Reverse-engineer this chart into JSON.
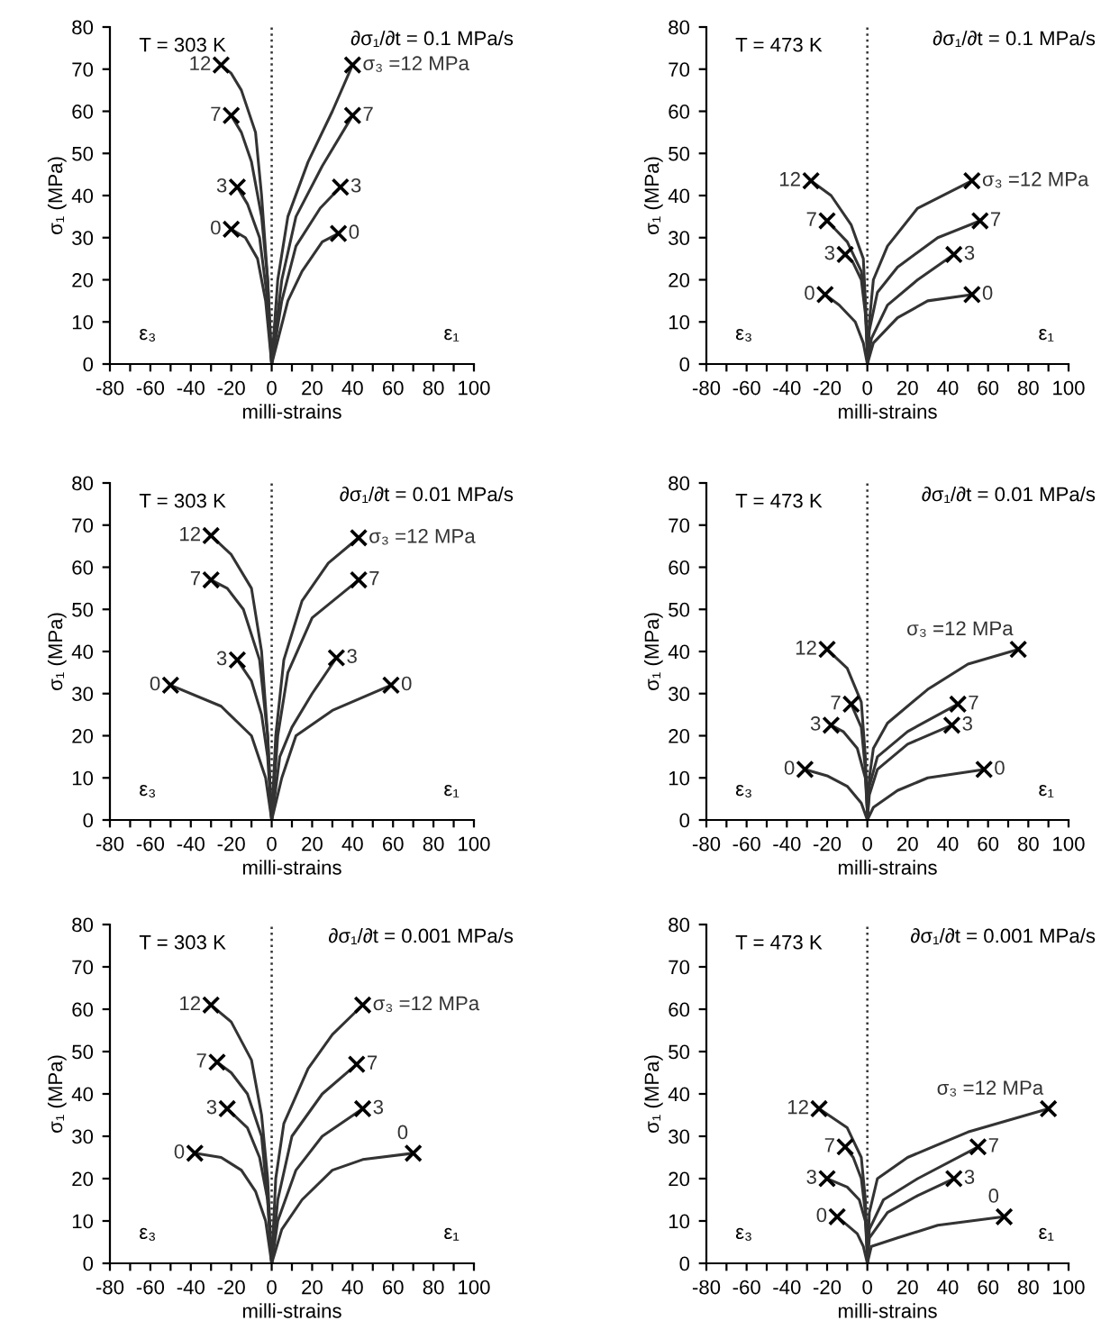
{
  "chart_data": [
    {
      "type": "line",
      "xlabel": "milli-strains",
      "ylabel": "σ₁ (MPa)",
      "xlim": [
        -80,
        100
      ],
      "ylim": [
        0,
        80
      ],
      "line_style": "solid",
      "grid": false,
      "xticks": [
        -80,
        {
          "value": -70,
          "label": null
        },
        -60,
        {
          "value": -50,
          "label": null
        },
        -40,
        {
          "value": -30,
          "label": null
        },
        -20,
        {
          "value": -10,
          "label": null
        },
        0,
        {
          "value": 10,
          "label": null
        },
        20,
        {
          "value": 30,
          "label": null
        },
        40,
        {
          "value": 50,
          "label": null
        },
        60,
        {
          "value": 70,
          "label": null
        },
        80,
        {
          "value": 90,
          "label": null
        },
        100
      ],
      "yticks": [
        0,
        10,
        20,
        30,
        40,
        50,
        60,
        70,
        80
      ],
      "ref_lines": [
        {
          "axis": "x",
          "value": 0,
          "line_style": "dotted",
          "color": "#333333"
        }
      ],
      "annotations": [
        "T = 303 K",
        "∂σ₁/∂t = 0.1 MPa/s",
        "ε₃",
        "ε₁"
      ],
      "series": [
        {
          "name": "12",
          "color": "#333333",
          "x": [
            0,
            -2,
            -5,
            -8,
            -15,
            -20,
            -25
          ],
          "values": [
            0,
            20,
            40,
            55,
            65,
            69,
            71
          ]
        },
        {
          "name": "7",
          "color": "#333333",
          "x": [
            0,
            -2,
            -5,
            -10,
            -15,
            -20
          ],
          "values": [
            0,
            20,
            35,
            48,
            55,
            59
          ]
        },
        {
          "name": "3",
          "color": "#333333",
          "x": [
            0,
            -2,
            -6,
            -12,
            -17
          ],
          "values": [
            0,
            15,
            30,
            38,
            42
          ]
        },
        {
          "name": "0",
          "color": "#333333",
          "x": [
            0,
            -3,
            -7,
            -13,
            -20
          ],
          "values": [
            0,
            15,
            25,
            30,
            32
          ]
        },
        {
          "name": "σ₃ =12 MPa",
          "color": "#333333",
          "x": [
            0,
            3,
            8,
            18,
            30,
            40
          ],
          "values": [
            0,
            20,
            35,
            48,
            60,
            71
          ]
        },
        {
          "name": "7",
          "color": "#333333",
          "x": [
            0,
            5,
            12,
            25,
            40
          ],
          "values": [
            0,
            20,
            35,
            47,
            59
          ]
        },
        {
          "name": "3",
          "color": "#333333",
          "x": [
            0,
            5,
            12,
            24,
            34
          ],
          "values": [
            0,
            15,
            28,
            37,
            42
          ]
        },
        {
          "name": "0",
          "color": "#333333",
          "x": [
            0,
            8,
            15,
            25,
            33
          ],
          "values": [
            0,
            15,
            22,
            29,
            31
          ]
        },
        {
          "type": "scatter",
          "marker": "cross",
          "color": "#000000",
          "x": [
            -25,
            -20,
            -17,
            -20,
            40,
            40,
            34,
            33
          ],
          "values": [
            71,
            59,
            42,
            32,
            71,
            59,
            42,
            31
          ]
        }
      ]
    },
    {
      "type": "line",
      "xlabel": "milli-strains",
      "ylabel": "σ₁ (MPa)",
      "xlim": [
        -80,
        100
      ],
      "ylim": [
        0,
        80
      ],
      "line_style": "solid",
      "grid": false,
      "xticks": [
        -80,
        {
          "value": -70,
          "label": null
        },
        -60,
        {
          "value": -50,
          "label": null
        },
        -40,
        {
          "value": -30,
          "label": null
        },
        -20,
        {
          "value": -10,
          "label": null
        },
        0,
        {
          "value": 10,
          "label": null
        },
        20,
        {
          "value": 30,
          "label": null
        },
        40,
        {
          "value": 50,
          "label": null
        },
        60,
        {
          "value": 70,
          "label": null
        },
        80,
        {
          "value": 90,
          "label": null
        },
        100
      ],
      "yticks": [
        0,
        10,
        20,
        30,
        40,
        50,
        60,
        70,
        80
      ],
      "ref_lines": [
        {
          "axis": "x",
          "value": 0,
          "line_style": "dotted",
          "color": "#333333"
        }
      ],
      "annotations": [
        "T = 473 K",
        "∂σ₁/∂t = 0.1 MPa/s",
        "ε₃",
        "ε₁"
      ],
      "series": [
        {
          "name": "12",
          "color": "#333333",
          "x": [
            0,
            -1,
            -2,
            -8,
            -18,
            -28
          ],
          "values": [
            3,
            15,
            25,
            33,
            40,
            43.5
          ]
        },
        {
          "name": "7",
          "color": "#333333",
          "x": [
            0,
            -1,
            -3,
            -10,
            -20
          ],
          "values": [
            3,
            15,
            22,
            29,
            34
          ]
        },
        {
          "name": "3",
          "color": "#333333",
          "x": [
            0,
            -1,
            -3,
            -7,
            -11
          ],
          "values": [
            3,
            12,
            20,
            24,
            26
          ]
        },
        {
          "name": "0",
          "color": "#333333",
          "x": [
            0,
            -2,
            -6,
            -14,
            -21
          ],
          "values": [
            0,
            5,
            10,
            14,
            16.5
          ]
        },
        {
          "name": "σ₃ =12 MPa",
          "color": "#333333",
          "x": [
            0,
            1,
            3,
            10,
            25,
            52
          ],
          "values": [
            0,
            10,
            20,
            28,
            37,
            43.5
          ]
        },
        {
          "name": "7",
          "color": "#333333",
          "x": [
            0,
            1,
            5,
            15,
            35,
            56
          ],
          "values": [
            0,
            8,
            17,
            23,
            30,
            34
          ]
        },
        {
          "name": "3",
          "color": "#333333",
          "x": [
            0,
            2,
            10,
            25,
            43
          ],
          "values": [
            0,
            6,
            14,
            20,
            26
          ]
        },
        {
          "name": "0",
          "color": "#333333",
          "x": [
            0,
            3,
            15,
            30,
            52
          ],
          "values": [
            0,
            5,
            11,
            15,
            16.5
          ]
        },
        {
          "type": "scatter",
          "marker": "cross",
          "color": "#000000",
          "x": [
            -28,
            -20,
            -11,
            -21,
            52,
            56,
            43,
            52
          ],
          "values": [
            43.5,
            34,
            26,
            16.5,
            43.5,
            34,
            26,
            16.5
          ]
        }
      ]
    },
    {
      "type": "line",
      "xlabel": "milli-strains",
      "ylabel": "σ₁ (MPa)",
      "xlim": [
        -80,
        100
      ],
      "ylim": [
        0,
        80
      ],
      "line_style": "solid",
      "grid": false,
      "xticks": [
        -80,
        {
          "value": -70,
          "label": null
        },
        -60,
        {
          "value": -50,
          "label": null
        },
        -40,
        {
          "value": -30,
          "label": null
        },
        -20,
        {
          "value": -10,
          "label": null
        },
        0,
        {
          "value": 10,
          "label": null
        },
        20,
        {
          "value": 30,
          "label": null
        },
        40,
        {
          "value": 50,
          "label": null
        },
        60,
        {
          "value": 70,
          "label": null
        },
        80,
        {
          "value": 90,
          "label": null
        },
        100
      ],
      "yticks": [
        0,
        10,
        20,
        30,
        40,
        50,
        60,
        70,
        80
      ],
      "ref_lines": [
        {
          "axis": "x",
          "value": 0,
          "line_style": "dotted",
          "color": "#333333"
        }
      ],
      "annotations": [
        "T = 303 K",
        "∂σ₁/∂t = 0.01 MPa/s",
        "ε₃",
        "ε₁"
      ],
      "series": [
        {
          "name": "12",
          "color": "#333333",
          "x": [
            0,
            -2,
            -5,
            -10,
            -20,
            -30
          ],
          "values": [
            0,
            20,
            40,
            55,
            63,
            67.5
          ]
        },
        {
          "name": "7",
          "color": "#333333",
          "x": [
            0,
            -2,
            -6,
            -14,
            -22,
            -30
          ],
          "values": [
            0,
            20,
            38,
            50,
            55,
            57
          ]
        },
        {
          "name": "3",
          "color": "#333333",
          "x": [
            0,
            -2,
            -5,
            -10,
            -17
          ],
          "values": [
            0,
            15,
            25,
            33,
            38
          ]
        },
        {
          "name": "0",
          "color": "#333333",
          "x": [
            0,
            -3,
            -10,
            -25,
            -50
          ],
          "values": [
            0,
            10,
            20,
            27,
            32
          ]
        },
        {
          "name": "σ₃ =12 MPa",
          "color": "#333333",
          "x": [
            0,
            2,
            6,
            15,
            28,
            43
          ],
          "values": [
            0,
            20,
            38,
            52,
            61,
            67
          ]
        },
        {
          "name": "7",
          "color": "#333333",
          "x": [
            0,
            3,
            8,
            20,
            43
          ],
          "values": [
            0,
            20,
            35,
            48,
            57
          ]
        },
        {
          "name": "3",
          "color": "#333333",
          "x": [
            0,
            4,
            10,
            20,
            32
          ],
          "values": [
            0,
            15,
            22,
            30,
            38.5
          ]
        },
        {
          "name": "0",
          "color": "#333333",
          "x": [
            0,
            5,
            12,
            30,
            59
          ],
          "values": [
            0,
            10,
            20,
            26,
            32
          ]
        },
        {
          "type": "scatter",
          "marker": "cross",
          "color": "#000000",
          "x": [
            -30,
            -30,
            -17,
            -50,
            43,
            43,
            32,
            59
          ],
          "values": [
            67.5,
            57,
            38,
            32,
            67,
            57,
            38.5,
            32
          ]
        }
      ]
    },
    {
      "type": "line",
      "xlabel": "milli-strains",
      "ylabel": "σ₁ (MPa)",
      "xlim": [
        -80,
        100
      ],
      "ylim": [
        0,
        80
      ],
      "line_style": "solid",
      "grid": false,
      "xticks": [
        -80,
        {
          "value": -70,
          "label": null
        },
        -60,
        {
          "value": -50,
          "label": null
        },
        -40,
        {
          "value": -30,
          "label": null
        },
        -20,
        {
          "value": -10,
          "label": null
        },
        0,
        {
          "value": 10,
          "label": null
        },
        20,
        {
          "value": 30,
          "label": null
        },
        40,
        {
          "value": 50,
          "label": null
        },
        60,
        {
          "value": 70,
          "label": null
        },
        80,
        {
          "value": 90,
          "label": null
        },
        100
      ],
      "yticks": [
        0,
        10,
        20,
        30,
        40,
        50,
        60,
        70,
        80
      ],
      "ref_lines": [
        {
          "axis": "x",
          "value": 0,
          "line_style": "dotted",
          "color": "#333333"
        }
      ],
      "annotations": [
        "T = 473 K",
        "∂σ₁/∂t = 0.01 MPa/s",
        "ε₃",
        "ε₁"
      ],
      "series": [
        {
          "name": "12",
          "color": "#333333",
          "x": [
            0,
            -1,
            -3,
            -10,
            -20
          ],
          "values": [
            2,
            15,
            28,
            36,
            40.5
          ]
        },
        {
          "name": "7",
          "color": "#333333",
          "x": [
            0,
            -1,
            -3,
            -8
          ],
          "values": [
            2,
            12,
            22,
            27.5
          ]
        },
        {
          "name": "3",
          "color": "#333333",
          "x": [
            0,
            -1,
            -5,
            -12,
            -18
          ],
          "values": [
            2,
            10,
            17,
            21,
            22.5
          ]
        },
        {
          "name": "0",
          "color": "#333333",
          "x": [
            0,
            -3,
            -10,
            -20,
            -31
          ],
          "values": [
            0,
            4,
            8,
            10.5,
            12
          ]
        },
        {
          "name": "σ₃ =12 MPa",
          "color": "#333333",
          "x": [
            0,
            1,
            3,
            10,
            30,
            50,
            75
          ],
          "values": [
            0,
            10,
            17,
            23,
            31,
            37,
            40.5
          ]
        },
        {
          "name": "7",
          "color": "#333333",
          "x": [
            0,
            1,
            5,
            20,
            45
          ],
          "values": [
            0,
            8,
            15,
            21,
            27.5
          ]
        },
        {
          "name": "3",
          "color": "#333333",
          "x": [
            0,
            1,
            5,
            20,
            42
          ],
          "values": [
            0,
            6,
            12,
            18,
            22.5
          ]
        },
        {
          "name": "0",
          "color": "#333333",
          "x": [
            0,
            3,
            15,
            30,
            58
          ],
          "values": [
            0,
            3,
            7,
            10,
            12
          ]
        },
        {
          "type": "scatter",
          "marker": "cross",
          "color": "#000000",
          "x": [
            -20,
            -8,
            -18,
            -31,
            75,
            45,
            42,
            58
          ],
          "values": [
            40.5,
            27.5,
            22.5,
            12,
            40.5,
            27.5,
            22.5,
            12
          ]
        }
      ]
    },
    {
      "type": "line",
      "xlabel": "milli-strains",
      "ylabel": "σ₁ (MPa)",
      "xlim": [
        -80,
        100
      ],
      "ylim": [
        0,
        80
      ],
      "line_style": "solid",
      "grid": false,
      "xticks": [
        -80,
        {
          "value": -70,
          "label": null
        },
        -60,
        {
          "value": -50,
          "label": null
        },
        -40,
        {
          "value": -30,
          "label": null
        },
        -20,
        {
          "value": -10,
          "label": null
        },
        0,
        {
          "value": 10,
          "label": null
        },
        20,
        {
          "value": 30,
          "label": null
        },
        40,
        {
          "value": 50,
          "label": null
        },
        60,
        {
          "value": 70,
          "label": null
        },
        80,
        {
          "value": 90,
          "label": null
        },
        100
      ],
      "yticks": [
        0,
        10,
        20,
        30,
        40,
        50,
        60,
        70,
        80
      ],
      "ref_lines": [
        {
          "axis": "x",
          "value": 0,
          "line_style": "dotted",
          "color": "#333333"
        }
      ],
      "annotations": [
        "T = 303 K",
        "∂σ₁/∂t = 0.001 MPa/s",
        "ε₃",
        "ε₁"
      ],
      "series": [
        {
          "name": "12",
          "color": "#333333",
          "x": [
            0,
            -2,
            -5,
            -10,
            -20,
            -30
          ],
          "values": [
            0,
            20,
            35,
            48,
            57,
            61
          ]
        },
        {
          "name": "7",
          "color": "#333333",
          "x": [
            0,
            -2,
            -5,
            -12,
            -20,
            -27
          ],
          "values": [
            0,
            15,
            30,
            40,
            45,
            47.5
          ]
        },
        {
          "name": "3",
          "color": "#333333",
          "x": [
            0,
            -2,
            -6,
            -12,
            -22
          ],
          "values": [
            0,
            15,
            25,
            32,
            36.5
          ]
        },
        {
          "name": "0",
          "color": "#333333",
          "x": [
            0,
            -3,
            -8,
            -15,
            -25,
            -38
          ],
          "values": [
            0,
            10,
            17,
            22,
            25,
            26
          ]
        },
        {
          "name": "σ₃ =12 MPa",
          "color": "#333333",
          "x": [
            0,
            2,
            6,
            18,
            30,
            45
          ],
          "values": [
            0,
            20,
            33,
            46,
            54,
            61
          ]
        },
        {
          "name": "7",
          "color": "#333333",
          "x": [
            0,
            3,
            10,
            25,
            42
          ],
          "values": [
            0,
            15,
            30,
            40,
            47
          ]
        },
        {
          "name": "3",
          "color": "#333333",
          "x": [
            0,
            3,
            12,
            25,
            45
          ],
          "values": [
            0,
            10,
            22,
            30,
            36.5
          ]
        },
        {
          "name": "0",
          "color": "#333333",
          "x": [
            0,
            5,
            15,
            30,
            45,
            70
          ],
          "values": [
            0,
            8,
            15,
            22,
            24.5,
            26
          ]
        },
        {
          "type": "scatter",
          "marker": "cross",
          "color": "#000000",
          "x": [
            -30,
            -27,
            -22,
            -38,
            45,
            42,
            45,
            70
          ],
          "values": [
            61,
            47.5,
            36.5,
            26,
            61,
            47,
            36.5,
            26
          ]
        }
      ]
    },
    {
      "type": "line",
      "xlabel": "milli-strains",
      "ylabel": "σ₁ (MPa)",
      "xlim": [
        -80,
        100
      ],
      "ylim": [
        0,
        80
      ],
      "line_style": "solid",
      "grid": false,
      "xticks": [
        -80,
        {
          "value": -70,
          "label": null
        },
        -60,
        {
          "value": -50,
          "label": null
        },
        -40,
        {
          "value": -30,
          "label": null
        },
        -20,
        {
          "value": -10,
          "label": null
        },
        0,
        {
          "value": 10,
          "label": null
        },
        20,
        {
          "value": 30,
          "label": null
        },
        40,
        {
          "value": 50,
          "label": null
        },
        60,
        {
          "value": 70,
          "label": null
        },
        80,
        {
          "value": 90,
          "label": null
        },
        100
      ],
      "yticks": [
        0,
        10,
        20,
        30,
        40,
        50,
        60,
        70,
        80
      ],
      "ref_lines": [
        {
          "axis": "x",
          "value": 0,
          "line_style": "dotted",
          "color": "#333333"
        }
      ],
      "annotations": [
        "T = 473 K",
        "∂σ₁/∂t = 0.001 MPa/s",
        "ε₃",
        "ε₁"
      ],
      "series": [
        {
          "name": "12",
          "color": "#333333",
          "x": [
            0,
            -1,
            -3,
            -10,
            -24
          ],
          "values": [
            2,
            15,
            25,
            32,
            36.5
          ]
        },
        {
          "name": "7",
          "color": "#333333",
          "x": [
            0,
            -1,
            -3,
            -7,
            -11
          ],
          "values": [
            2,
            12,
            20,
            25,
            27.5
          ]
        },
        {
          "name": "3",
          "color": "#333333",
          "x": [
            0,
            -1,
            -4,
            -10,
            -20
          ],
          "values": [
            2,
            10,
            15,
            18,
            20
          ]
        },
        {
          "name": "0",
          "color": "#333333",
          "x": [
            0,
            -2,
            -5,
            -10,
            -15
          ],
          "values": [
            0,
            4,
            7,
            9,
            11
          ]
        },
        {
          "name": "σ₃ =12 MPa",
          "color": "#333333",
          "x": [
            0,
            1,
            5,
            20,
            50,
            90
          ],
          "values": [
            0,
            12,
            20,
            25,
            31,
            36.5
          ]
        },
        {
          "name": "7",
          "color": "#333333",
          "x": [
            0,
            1,
            8,
            25,
            55
          ],
          "values": [
            0,
            8,
            15,
            20,
            27.5
          ]
        },
        {
          "name": "3",
          "color": "#333333",
          "x": [
            0,
            1,
            10,
            25,
            43
          ],
          "values": [
            0,
            6,
            12,
            16,
            20
          ]
        },
        {
          "name": "0",
          "color": "#333333",
          "x": [
            0,
            2,
            15,
            35,
            68
          ],
          "values": [
            0,
            4,
            6,
            9,
            11
          ]
        },
        {
          "type": "scatter",
          "marker": "cross",
          "color": "#000000",
          "x": [
            -24,
            -11,
            -20,
            -15,
            90,
            55,
            43,
            68
          ],
          "values": [
            36.5,
            27.5,
            20,
            11,
            36.5,
            27.5,
            20,
            11
          ]
        }
      ]
    }
  ]
}
